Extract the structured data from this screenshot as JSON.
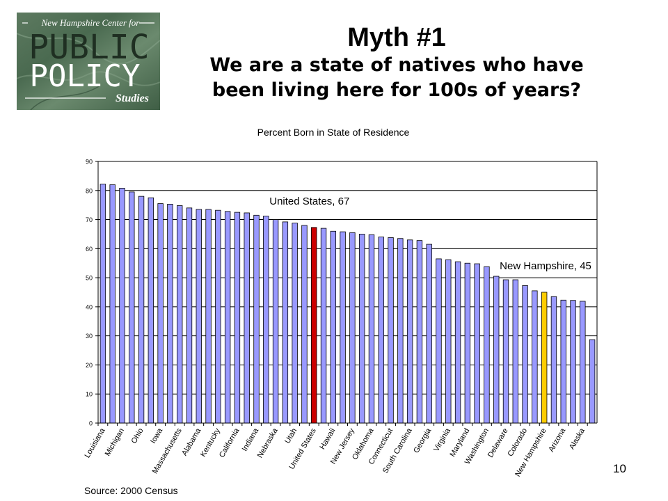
{
  "logo": {
    "line1": "New Hampshire Center for",
    "line2": "PUBLIC",
    "line3": "POLICY",
    "line4": "Studies"
  },
  "slide": {
    "title": "Myth #1",
    "subtitle_line1": "We are a state of natives who have",
    "subtitle_line2": "been living here for 100s of years?",
    "source": "Source:  2000 Census",
    "number": "10"
  },
  "colors": {
    "bar": "#9999ff",
    "us_bar": "#cc0000",
    "nh_bar": "#ffcc00"
  },
  "chart_data": {
    "type": "bar",
    "title": "Percent Born in State of Residence",
    "xlabel": "",
    "ylabel": "",
    "ylim": [
      0,
      90
    ],
    "yticks": [
      0,
      10,
      20,
      30,
      40,
      50,
      60,
      70,
      80,
      90
    ],
    "grid": true,
    "values": [
      82.2,
      82.0,
      80.8,
      79.5,
      78.0,
      77.5,
      75.5,
      75.3,
      74.8,
      74.0,
      73.5,
      73.5,
      73.2,
      72.8,
      72.5,
      72.3,
      71.5,
      71.2,
      70.0,
      69.2,
      68.8,
      68.0,
      67.3,
      67.0,
      66.0,
      65.8,
      65.5,
      65.0,
      64.8,
      64.0,
      63.8,
      63.5,
      63.0,
      62.8,
      61.5,
      56.5,
      56.2,
      55.5,
      55.0,
      54.8,
      53.8,
      50.5,
      49.3,
      49.3,
      47.3,
      45.5,
      45.0,
      43.5,
      42.3,
      42.2,
      41.9,
      28.7
    ],
    "categories": [
      "Louisiana",
      "",
      "Michigan",
      "",
      "Ohio",
      "",
      "Iowa",
      "",
      "Massachusetts",
      "",
      "Alabama",
      "",
      "Kentucky",
      "",
      "California",
      "",
      "Indiana",
      "",
      "Nebraska",
      "",
      "Utah",
      "",
      "United States",
      "",
      "Hawaii",
      "",
      "New Jersey",
      "",
      "Oklahoma",
      "",
      "Connecticut",
      "",
      "South Carolina",
      "",
      "Georgia",
      "",
      "Virginia",
      "",
      "Maryland",
      "",
      "Washington",
      "",
      "Delaware",
      "",
      "Colorado",
      "",
      "New Hampshire",
      "",
      "Arizona",
      "",
      "Alaska",
      ""
    ],
    "highlights": [
      {
        "index": 22,
        "label": "United States, 67",
        "color": "#cc0000"
      },
      {
        "index": 46,
        "label": "New Hampshire, 45",
        "color": "#ffcc00"
      }
    ]
  }
}
